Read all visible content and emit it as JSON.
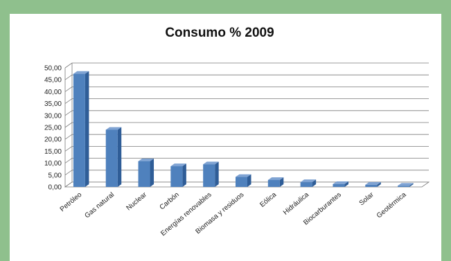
{
  "chart_data": {
    "type": "bar",
    "style": "3d-column",
    "title": "Consumo % 2009",
    "xlabel": "",
    "ylabel": "",
    "categories": [
      "Petróleo",
      "Gas natural",
      "Nuclear",
      "Carbón",
      "Energías renovables",
      "Biomasa y residuos",
      "Eólica",
      "Hidráulica",
      "Biocarburantes",
      "Solar",
      "Geotérmica"
    ],
    "values": [
      47.5,
      24.0,
      10.8,
      8.7,
      9.5,
      4.2,
      2.9,
      2.0,
      1.2,
      0.9,
      0.5
    ],
    "ylim": [
      0,
      50
    ],
    "yticks": [
      "0,00",
      "5,00",
      "10,00",
      "15,00",
      "20,00",
      "25,00",
      "30,00",
      "35,00",
      "40,00",
      "45,00",
      "50,00"
    ],
    "grid": true,
    "legend": "none",
    "colors": {
      "bar_front": "#4f81bd",
      "bar_side": "#2f5d97",
      "bar_top": "#7fa3d3",
      "grid": "#7a7a7a",
      "frame": "#8fc08d"
    }
  }
}
